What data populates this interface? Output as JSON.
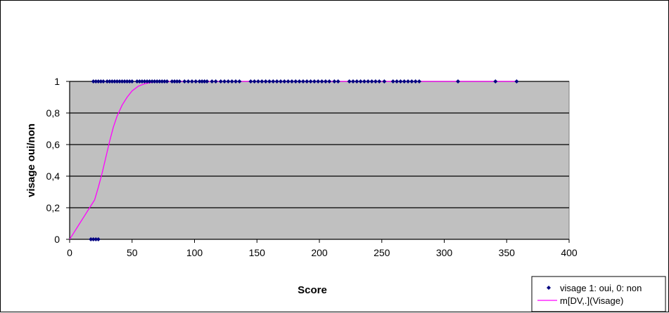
{
  "chart_data": {
    "type": "scatter",
    "title": "",
    "xlabel": "Score",
    "ylabel": "visage oui/non",
    "xlim": [
      0,
      400
    ],
    "ylim": [
      0,
      1
    ],
    "x_ticks": [
      {
        "value": 0,
        "label": "0"
      },
      {
        "value": 50,
        "label": "50"
      },
      {
        "value": 100,
        "label": "100"
      },
      {
        "value": 150,
        "label": "150"
      },
      {
        "value": 200,
        "label": "200"
      },
      {
        "value": 250,
        "label": "250"
      },
      {
        "value": 300,
        "label": "300"
      },
      {
        "value": 350,
        "label": "350"
      },
      {
        "value": 400,
        "label": "400"
      }
    ],
    "y_ticks": [
      {
        "value": 0,
        "label": "0"
      },
      {
        "value": 0.2,
        "label": "0,2"
      },
      {
        "value": 0.4,
        "label": "0,4"
      },
      {
        "value": 0.6,
        "label": "0,6"
      },
      {
        "value": 0.8,
        "label": "0,8"
      },
      {
        "value": 1,
        "label": "1"
      }
    ],
    "grid": "horizontal",
    "plot_background": "#c0c0c0",
    "legend_position": "bottom-right",
    "series": [
      {
        "name": "visage 1: oui, 0: non",
        "kind": "scatter",
        "color": "#000080",
        "marker": "diamond",
        "points": [
          [
            17,
            0
          ],
          [
            19,
            0
          ],
          [
            21,
            0
          ],
          [
            23,
            0
          ],
          [
            19,
            1
          ],
          [
            21,
            1
          ],
          [
            23,
            1
          ],
          [
            25,
            1
          ],
          [
            27,
            1
          ],
          [
            30,
            1
          ],
          [
            32,
            1
          ],
          [
            34,
            1
          ],
          [
            36,
            1
          ],
          [
            38,
            1
          ],
          [
            40,
            1
          ],
          [
            42,
            1
          ],
          [
            44,
            1
          ],
          [
            46,
            1
          ],
          [
            48,
            1
          ],
          [
            50,
            1
          ],
          [
            54,
            1
          ],
          [
            56,
            1
          ],
          [
            58,
            1
          ],
          [
            60,
            1
          ],
          [
            62,
            1
          ],
          [
            64,
            1
          ],
          [
            66,
            1
          ],
          [
            68,
            1
          ],
          [
            70,
            1
          ],
          [
            72,
            1
          ],
          [
            74,
            1
          ],
          [
            76,
            1
          ],
          [
            78,
            1
          ],
          [
            82,
            1
          ],
          [
            84,
            1
          ],
          [
            86,
            1
          ],
          [
            88,
            1
          ],
          [
            92,
            1
          ],
          [
            95,
            1
          ],
          [
            98,
            1
          ],
          [
            101,
            1
          ],
          [
            104,
            1
          ],
          [
            106,
            1
          ],
          [
            108,
            1
          ],
          [
            110,
            1
          ],
          [
            114,
            1
          ],
          [
            117,
            1
          ],
          [
            121,
            1
          ],
          [
            124,
            1
          ],
          [
            127,
            1
          ],
          [
            130,
            1
          ],
          [
            133,
            1
          ],
          [
            136,
            1
          ],
          [
            145,
            1
          ],
          [
            148,
            1
          ],
          [
            151,
            1
          ],
          [
            154,
            1
          ],
          [
            157,
            1
          ],
          [
            160,
            1
          ],
          [
            163,
            1
          ],
          [
            166,
            1
          ],
          [
            169,
            1
          ],
          [
            172,
            1
          ],
          [
            175,
            1
          ],
          [
            178,
            1
          ],
          [
            181,
            1
          ],
          [
            184,
            1
          ],
          [
            187,
            1
          ],
          [
            190,
            1
          ],
          [
            193,
            1
          ],
          [
            196,
            1
          ],
          [
            199,
            1
          ],
          [
            202,
            1
          ],
          [
            205,
            1
          ],
          [
            208,
            1
          ],
          [
            212,
            1
          ],
          [
            215,
            1
          ],
          [
            224,
            1
          ],
          [
            227,
            1
          ],
          [
            230,
            1
          ],
          [
            233,
            1
          ],
          [
            236,
            1
          ],
          [
            239,
            1
          ],
          [
            242,
            1
          ],
          [
            245,
            1
          ],
          [
            248,
            1
          ],
          [
            252,
            1
          ],
          [
            259,
            1
          ],
          [
            262,
            1
          ],
          [
            265,
            1
          ],
          [
            268,
            1
          ],
          [
            271,
            1
          ],
          [
            274,
            1
          ],
          [
            277,
            1
          ],
          [
            280,
            1
          ],
          [
            311,
            1
          ],
          [
            341,
            1
          ],
          [
            358,
            1
          ]
        ]
      },
      {
        "name": "m[DV,.](Visage)",
        "kind": "line",
        "color": "#ff00ff",
        "points": [
          [
            0,
            0
          ],
          [
            4,
            0.05
          ],
          [
            8,
            0.1
          ],
          [
            12,
            0.15
          ],
          [
            16,
            0.2
          ],
          [
            20,
            0.25
          ],
          [
            23,
            0.33
          ],
          [
            26,
            0.42
          ],
          [
            29,
            0.52
          ],
          [
            32,
            0.62
          ],
          [
            35,
            0.71
          ],
          [
            38,
            0.78
          ],
          [
            42,
            0.85
          ],
          [
            46,
            0.9
          ],
          [
            50,
            0.94
          ],
          [
            55,
            0.97
          ],
          [
            60,
            0.985
          ],
          [
            66,
            0.995
          ],
          [
            75,
            1
          ],
          [
            100,
            1
          ],
          [
            200,
            1
          ],
          [
            300,
            1
          ],
          [
            358,
            1
          ]
        ]
      }
    ]
  }
}
